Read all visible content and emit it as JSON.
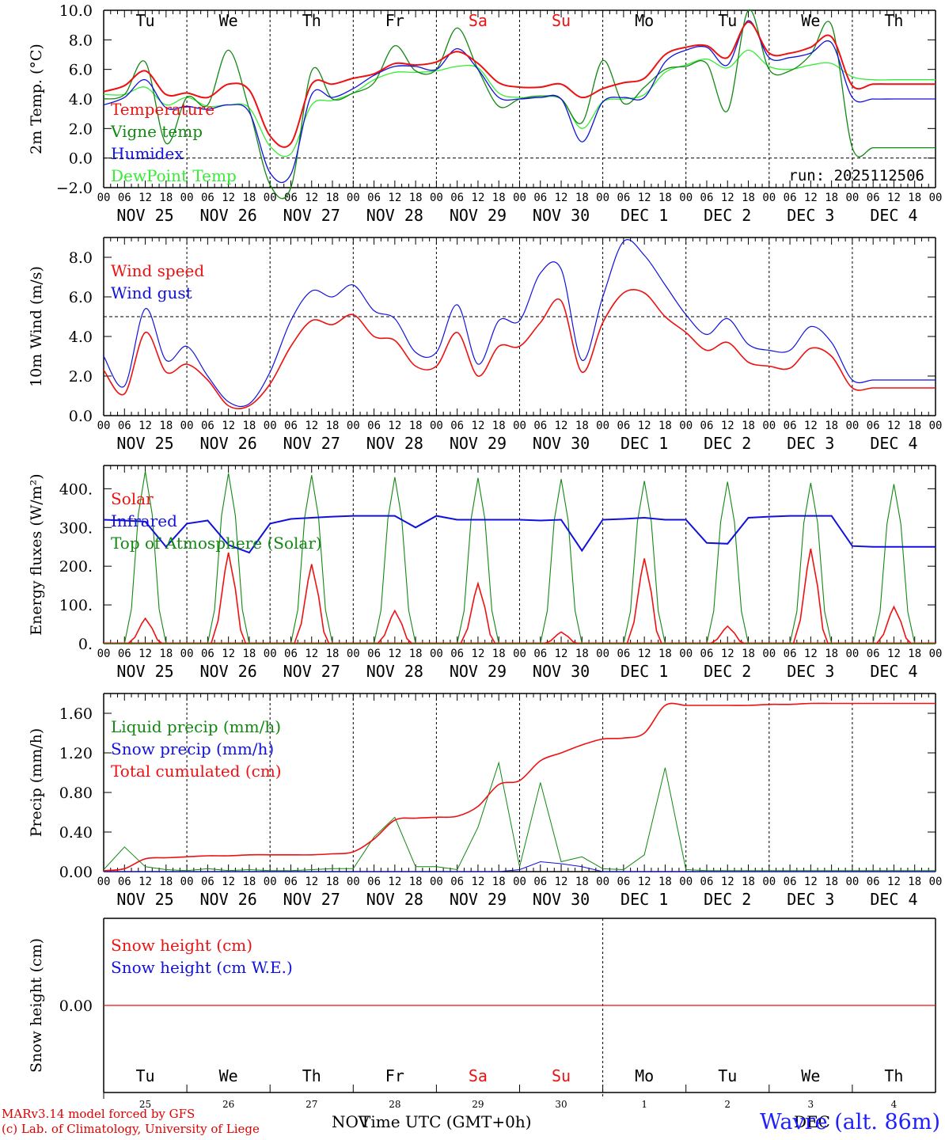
{
  "days": {
    "names": [
      "Tu",
      "We",
      "Th",
      "Fr",
      "Sa",
      "Su",
      "Mo",
      "Tu",
      "We",
      "Th"
    ],
    "weekend_flags": [
      false,
      false,
      false,
      false,
      true,
      true,
      false,
      false,
      false,
      false
    ],
    "date_labels": [
      "NOV 25",
      "NOV 26",
      "NOV 27",
      "NOV 28",
      "NOV 29",
      "NOV 30",
      "DEC  1",
      "DEC  2",
      "DEC  3",
      "DEC  4"
    ],
    "hour_ticks": [
      "00",
      "06",
      "12",
      "18"
    ],
    "end_tick": "00",
    "bottom_numbers": [
      "25",
      "26",
      "27",
      "28",
      "29",
      "30",
      "1",
      "2",
      "3",
      "4"
    ],
    "month_left": "NOV",
    "month_right": "DEC"
  },
  "colors": {
    "red": "#ee1111",
    "green": "#118811",
    "blue": "#1111dd",
    "light_green": "#33ee33",
    "weekend": "#ee1111"
  },
  "footer": {
    "line1": "MARv3.14 model forced by GFS",
    "line2": "(c) Lab. of Climatology, University of Liege",
    "location": "Wavre (alt. 86m)",
    "xaxis_title": "Time UTC (GMT+0h)"
  },
  "chart_data": [
    {
      "type": "line",
      "ylabel": "2m Temp. (°C)",
      "ylim": [
        -2,
        10
      ],
      "yticks": [
        "−2.0",
        "0.0",
        "2.0",
        "4.0",
        "6.0",
        "8.0",
        "10.0"
      ],
      "ytick_values": [
        -2,
        0,
        2,
        4,
        6,
        8,
        10
      ],
      "run_label": "run: 2025112506",
      "reference_line": 0,
      "x_hours": [
        0,
        6,
        12,
        18,
        24,
        30,
        36,
        42,
        48,
        54,
        60,
        66,
        72,
        78,
        84,
        90,
        96,
        102,
        108,
        114,
        120,
        126,
        132,
        138,
        144,
        150,
        156,
        162,
        168,
        174,
        180,
        186,
        192,
        198,
        204,
        210,
        216,
        222,
        228,
        234,
        240
      ],
      "series": [
        {
          "name": "Temperature",
          "color": "red",
          "values": [
            4.5,
            4.9,
            5.9,
            4.3,
            4.4,
            4.1,
            5.0,
            4.6,
            1.5,
            1.0,
            5.0,
            5.0,
            5.4,
            5.7,
            6.4,
            6.3,
            6.5,
            7.2,
            6.4,
            5.1,
            4.8,
            4.8,
            5.0,
            4.1,
            4.7,
            5.1,
            5.4,
            7.0,
            7.5,
            7.6,
            6.8,
            9.2,
            7.1,
            7.1,
            7.5,
            8.2,
            4.9,
            5,
            5,
            5,
            5
          ]
        },
        {
          "name": "Vigne temp",
          "color": "green",
          "values": [
            4.0,
            4.3,
            6.5,
            1.0,
            4.1,
            3.6,
            7.3,
            3.3,
            -1.8,
            -2.0,
            5.9,
            4.0,
            4.4,
            5.1,
            7.6,
            5.9,
            6.0,
            8.8,
            6.0,
            3.5,
            4.0,
            4.2,
            4.0,
            2.4,
            6.6,
            3.7,
            4.8,
            6.0,
            6.2,
            6.4,
            3.2,
            10.0,
            6.0,
            5.9,
            7.0,
            9.0,
            0.7,
            0.7,
            0.7,
            0.7,
            0.7
          ]
        },
        {
          "name": "Humidex",
          "color": "blue",
          "values": [
            3.6,
            4.1,
            5.3,
            3.4,
            3.5,
            3.3,
            3.6,
            3.1,
            -1.0,
            -1.1,
            4.3,
            4.1,
            4.7,
            5.6,
            6.2,
            6.2,
            6.0,
            7.4,
            6.0,
            4.1,
            4.0,
            4.1,
            4.0,
            1.1,
            3.8,
            4.1,
            4.1,
            6.5,
            7.3,
            7.5,
            6.3,
            9.3,
            6.8,
            6.8,
            7.1,
            7.8,
            4.1,
            4,
            4,
            4,
            4
          ]
        },
        {
          "name": "DewPoint Temp",
          "color": "light_green",
          "values": [
            4.3,
            4.3,
            4.8,
            3.6,
            4.1,
            3.5,
            3.6,
            3.4,
            0.8,
            0.3,
            3.6,
            3.9,
            4.4,
            5.3,
            5.8,
            5.8,
            5.9,
            6.2,
            6.1,
            4.4,
            4.1,
            4.1,
            4.0,
            2.0,
            3.8,
            4.0,
            4.3,
            5.8,
            6.3,
            6.7,
            6.1,
            7.3,
            6.2,
            6.0,
            6.3,
            6.4,
            5.5,
            5.3,
            5.3,
            5.3,
            5.3
          ]
        }
      ]
    },
    {
      "type": "line",
      "ylabel": "10m Wind (m/s)",
      "ylim": [
        0,
        9
      ],
      "yticks": [
        "0.0",
        "2.0",
        "4.0",
        "6.0",
        "8.0"
      ],
      "ytick_values": [
        0,
        2,
        4,
        6,
        8
      ],
      "reference_line": 5,
      "x_hours": [
        0,
        6,
        12,
        18,
        24,
        30,
        36,
        42,
        48,
        54,
        60,
        66,
        72,
        78,
        84,
        90,
        96,
        102,
        108,
        114,
        120,
        126,
        132,
        138,
        144,
        150,
        156,
        162,
        168,
        174,
        180,
        186,
        192,
        198,
        204,
        210,
        216,
        222,
        228,
        234,
        240
      ],
      "series": [
        {
          "name": "Wind speed",
          "color": "red",
          "values": [
            2.3,
            1.1,
            4.2,
            2.2,
            2.6,
            1.8,
            0.5,
            0.5,
            1.6,
            3.5,
            4.8,
            4.6,
            5.1,
            4.0,
            3.8,
            2.5,
            2.5,
            4.2,
            2.0,
            3.5,
            3.5,
            4.7,
            5.8,
            2.2,
            4.7,
            6.2,
            6.2,
            5.0,
            4.2,
            3.3,
            3.7,
            2.7,
            2.5,
            2.4,
            3.4,
            3.0,
            1.4,
            1.4,
            1.4,
            1.4,
            1.4
          ]
        },
        {
          "name": "Wind gust",
          "color": "blue",
          "values": [
            3.0,
            1.5,
            5.4,
            2.8,
            3.5,
            2.0,
            0.7,
            0.6,
            2.2,
            4.8,
            6.3,
            6.0,
            6.6,
            5.3,
            4.9,
            3.2,
            3.2,
            5.6,
            2.6,
            4.8,
            4.8,
            7.2,
            7.4,
            2.8,
            6.0,
            8.8,
            8.1,
            6.6,
            5.1,
            4.1,
            4.9,
            3.6,
            3.3,
            3.3,
            4.5,
            3.7,
            1.8,
            1.8,
            1.8,
            1.8,
            1.8
          ]
        }
      ]
    },
    {
      "type": "line",
      "ylabel": "Energy fluxes (W/m²)",
      "ylim": [
        0,
        460
      ],
      "yticks": [
        "0.",
        "100.",
        "200.",
        "300.",
        "400."
      ],
      "ytick_values": [
        0,
        100,
        200,
        300,
        400
      ],
      "x_hours": [
        0,
        6,
        12,
        18,
        24,
        30,
        36,
        42,
        48,
        54,
        60,
        66,
        72,
        78,
        84,
        90,
        96,
        102,
        108,
        114,
        120,
        126,
        132,
        138,
        144,
        150,
        156,
        162,
        168,
        174,
        180,
        186,
        192,
        198,
        204,
        210,
        216,
        222,
        228,
        234,
        240
      ],
      "series": [
        {
          "name": "Solar",
          "color": "red",
          "daily_peaks": [
            65,
            235,
            205,
            85,
            155,
            30,
            220,
            45,
            245,
            95
          ]
        },
        {
          "name": "Infrared",
          "color": "blue",
          "values": [
            320,
            318,
            315,
            250,
            310,
            318,
            255,
            235,
            310,
            322,
            325,
            328,
            330,
            330,
            330,
            300,
            330,
            320,
            320,
            320,
            320,
            318,
            320,
            240,
            320,
            322,
            325,
            320,
            320,
            260,
            258,
            325,
            328,
            330,
            330,
            330,
            252,
            250,
            250,
            250,
            250
          ]
        },
        {
          "name": "Top of Atmosphere (Solar)",
          "color": "green",
          "daily_peaks": [
            445,
            440,
            435,
            430,
            428,
            425,
            420,
            418,
            415,
            412
          ]
        }
      ]
    },
    {
      "type": "line",
      "ylabel": "Precip (mm/h)",
      "ylim": [
        0,
        1.8
      ],
      "yticks": [
        "0.00",
        "0.40",
        "0.80",
        "1.20",
        "1.60"
      ],
      "ytick_values": [
        0,
        0.4,
        0.8,
        1.2,
        1.6
      ],
      "x_hours": [
        0,
        6,
        12,
        18,
        24,
        30,
        36,
        42,
        48,
        54,
        60,
        66,
        72,
        78,
        84,
        90,
        96,
        102,
        108,
        114,
        120,
        126,
        132,
        138,
        144,
        150,
        156,
        162,
        168,
        174,
        180,
        186,
        192,
        198,
        204,
        210,
        216,
        222,
        228,
        234,
        240
      ],
      "series": [
        {
          "name": "Liquid precip (mm/h)",
          "color": "green",
          "values": [
            0.02,
            0.25,
            0.05,
            0.02,
            0.01,
            0.03,
            0.01,
            0.02,
            0.01,
            0.01,
            0.02,
            0.03,
            0.03,
            0.35,
            0.55,
            0.05,
            0.05,
            0.02,
            0.45,
            1.1,
            0.05,
            0.9,
            0.1,
            0.15,
            0.03,
            0.02,
            0.17,
            1.05,
            0.02,
            0.01,
            0.01,
            0.01,
            0.01,
            0.01,
            0.01,
            0.01,
            0.01,
            0.01,
            0.01,
            0.01,
            0.01
          ]
        },
        {
          "name": "Snow precip (mm/h)",
          "color": "blue",
          "values": [
            0,
            0,
            0,
            0,
            0,
            0,
            0,
            0,
            0,
            0,
            0,
            0,
            0,
            0,
            0,
            0,
            0,
            0,
            0,
            0,
            0.02,
            0.1,
            0.08,
            0.05,
            0,
            0,
            0,
            0,
            0,
            0,
            0,
            0,
            0,
            0,
            0,
            0,
            0,
            0,
            0,
            0,
            0
          ]
        },
        {
          "name": "Total cumulated (cm)",
          "color": "red",
          "values": [
            0.01,
            0.03,
            0.13,
            0.14,
            0.15,
            0.16,
            0.16,
            0.17,
            0.17,
            0.17,
            0.17,
            0.18,
            0.2,
            0.33,
            0.52,
            0.54,
            0.55,
            0.56,
            0.66,
            0.88,
            0.92,
            1.12,
            1.2,
            1.28,
            1.34,
            1.35,
            1.4,
            1.68,
            1.68,
            1.68,
            1.68,
            1.68,
            1.69,
            1.69,
            1.7,
            1.7,
            1.7,
            1.7,
            1.7,
            1.7,
            1.7
          ]
        }
      ]
    },
    {
      "type": "line",
      "ylabel": "Snow height (cm)",
      "ylim": [
        -1,
        1
      ],
      "yticks": [
        "0.00"
      ],
      "ytick_values": [
        0
      ],
      "series": [
        {
          "name": "Snow height (cm)",
          "color": "red",
          "values": [
            0,
            0,
            0,
            0,
            0,
            0,
            0,
            0,
            0,
            0,
            0
          ]
        },
        {
          "name": "Snow height (cm W.E.)",
          "color": "blue",
          "values": []
        }
      ]
    }
  ]
}
